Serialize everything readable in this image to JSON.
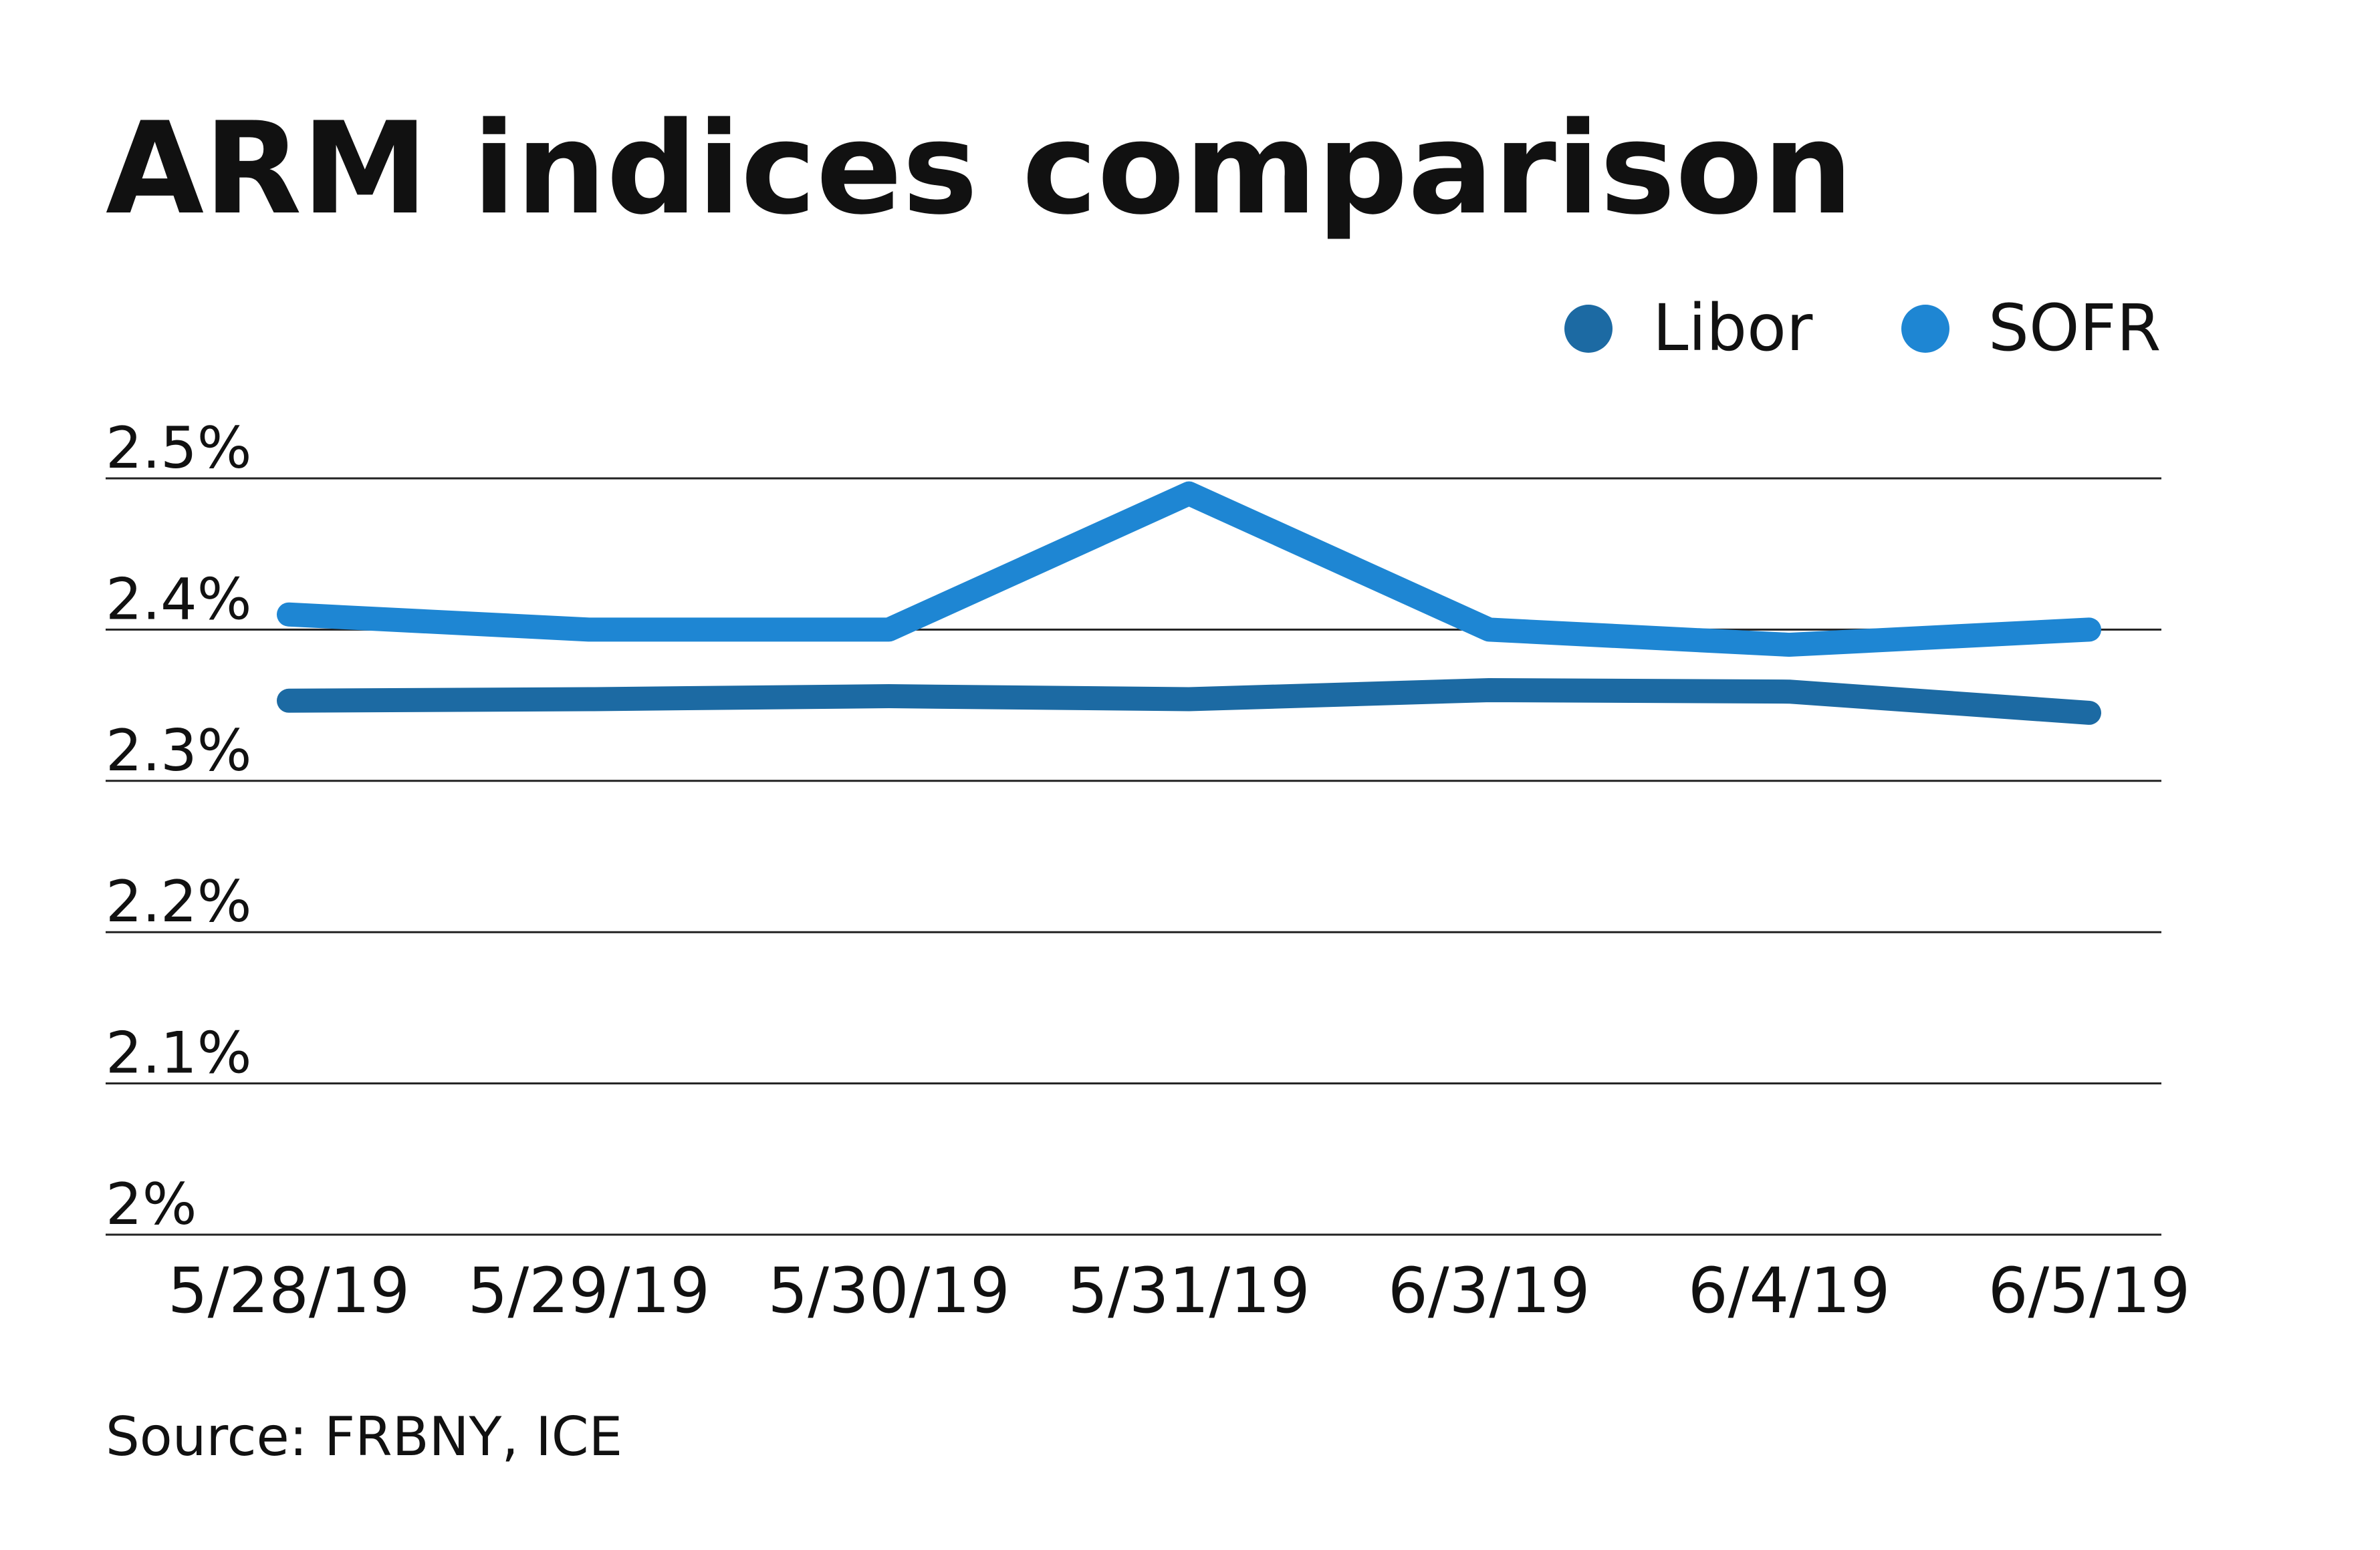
{
  "chart_data": {
    "type": "line",
    "title": "ARM indices comparison",
    "categories": [
      "5/28/19",
      "5/29/19",
      "5/30/19",
      "5/31/19",
      "6/3/19",
      "6/4/19",
      "6/5/19"
    ],
    "series": [
      {
        "name": "Libor",
        "color": "#1c6aa3",
        "values": [
          2.353,
          2.354,
          2.356,
          2.354,
          2.36,
          2.359,
          2.345
        ]
      },
      {
        "name": "SOFR",
        "color": "#1e86d3",
        "values": [
          2.41,
          2.4,
          2.4,
          2.49,
          2.4,
          2.39,
          2.4
        ]
      }
    ],
    "yticks": [
      "2%",
      "2.1%",
      "2.2%",
      "2.3%",
      "2.4%",
      "2.5%"
    ],
    "ylim": [
      2.0,
      2.5
    ],
    "legend": "top-right",
    "grid": true,
    "source": "Source: FRBNY, ICE"
  }
}
